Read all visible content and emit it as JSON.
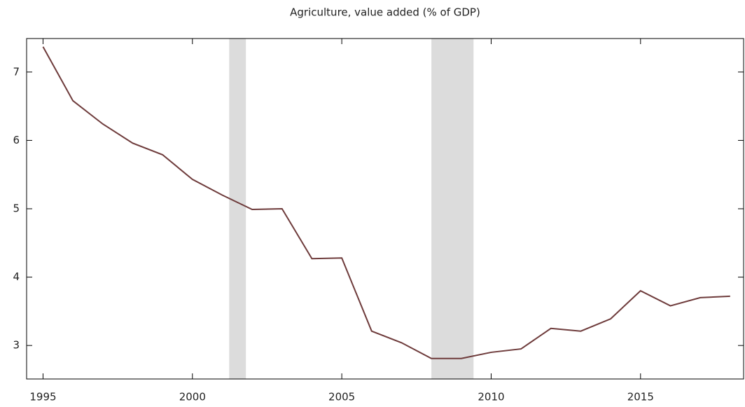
{
  "chart_data": {
    "type": "line",
    "title": "Agriculture, value added (% of GDP)",
    "x": [
      1995,
      1996,
      1997,
      1998,
      1999,
      2000,
      2001,
      2002,
      2003,
      2004,
      2005,
      2006,
      2007,
      2008,
      2009,
      2010,
      2011,
      2012,
      2013,
      2014,
      2015,
      2016,
      2017,
      2018
    ],
    "series": [
      {
        "name": "Agriculture, value added (% of GDP)",
        "color": "#6e3b3b",
        "values": [
          7.37,
          6.58,
          6.24,
          5.96,
          5.79,
          5.43,
          5.2,
          4.99,
          5.0,
          4.27,
          4.28,
          3.21,
          3.04,
          2.81,
          2.81,
          2.9,
          2.95,
          3.25,
          3.21,
          3.39,
          3.8,
          3.58,
          3.7,
          3.72
        ]
      }
    ],
    "shaded_ranges": [
      [
        2001.23,
        2001.79
      ],
      [
        2008.0,
        2009.41
      ]
    ],
    "shade_color": "#dcdcdc",
    "xlim": [
      1994.45,
      2018.45
    ],
    "xticks": [
      1995,
      2000,
      2005,
      2010,
      2015
    ],
    "ylim": [
      2.51,
      7.49
    ],
    "yticks": [
      3,
      4,
      5,
      6,
      7
    ]
  }
}
